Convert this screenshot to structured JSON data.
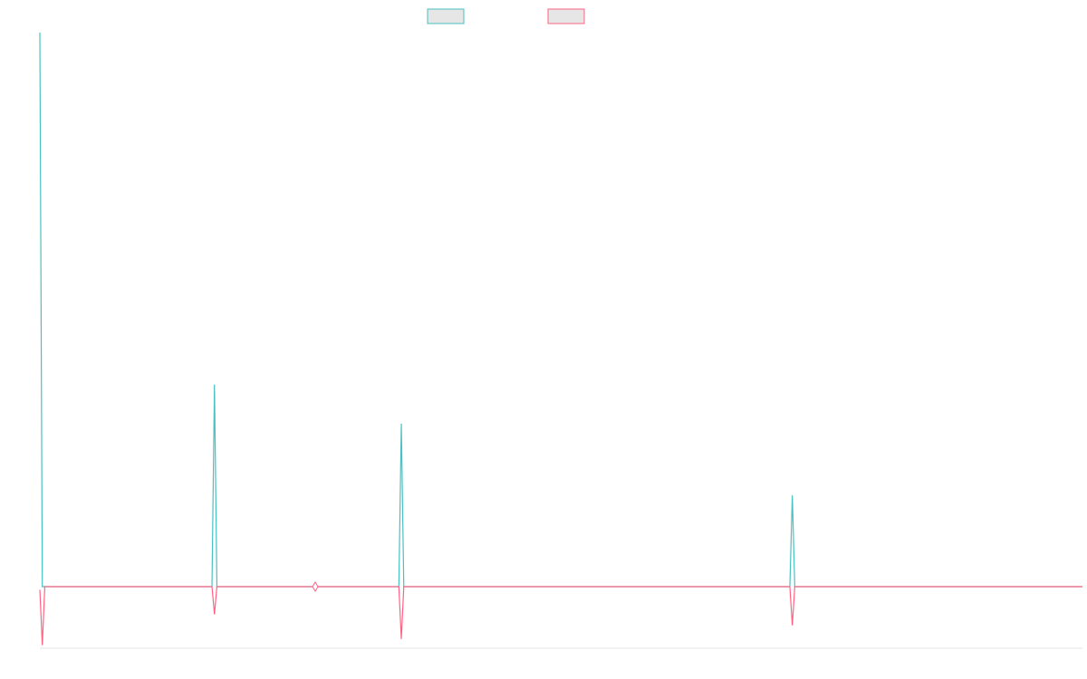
{
  "chart_data": {
    "type": "line",
    "title": "",
    "xlabel": "",
    "ylabel": "",
    "grid": false,
    "legend": "top-center",
    "x_count": 425,
    "xlim": [
      0,
      424
    ],
    "ylim": [
      -1.0,
      8.5
    ],
    "series": [
      {
        "name": "",
        "color": "#4bc0c0",
        "fill": "#e6e6e6",
        "values_baseline": 0,
        "spikes": [
          [
            0,
            8.5
          ],
          [
            71,
            3.1
          ],
          [
            147,
            2.5
          ],
          [
            306,
            1.4
          ]
        ]
      },
      {
        "name": "",
        "color": "#ff6384",
        "fill": "#e6e6e6",
        "values_baseline": 0,
        "spikes": [
          [
            0,
            -0.05
          ],
          [
            1,
            -0.95
          ],
          [
            71,
            -0.45
          ],
          [
            147,
            -0.85
          ],
          [
            306,
            -0.63
          ]
        ],
        "marker": {
          "x": 112,
          "y": 0
        }
      }
    ]
  }
}
